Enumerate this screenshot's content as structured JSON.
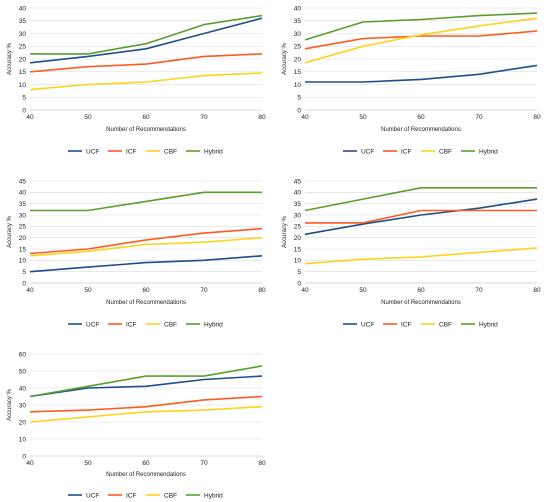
{
  "chart_data": [
    {
      "type": "line",
      "x": [
        40,
        50,
        60,
        70,
        80
      ],
      "xlabel": "Number of Recommendations",
      "ylabel": "Accuracy %",
      "ylim": [
        0,
        40
      ],
      "yticks": [
        0,
        5,
        10,
        15,
        20,
        25,
        30,
        35,
        40
      ],
      "grid": "horizontal",
      "legend_position": "bottom",
      "series": [
        {
          "name": "UCF",
          "color": "#1f4e8c",
          "values": [
            18.5,
            21,
            24,
            30,
            36
          ]
        },
        {
          "name": "ICF",
          "color": "#ff5a1f",
          "values": [
            15,
            17,
            18,
            21,
            22
          ]
        },
        {
          "name": "CBF",
          "color": "#ffd21f",
          "values": [
            8,
            10,
            11,
            13.5,
            14.5
          ]
        },
        {
          "name": "Hybrid",
          "color": "#5a9e2f",
          "values": [
            22,
            22,
            26,
            33.5,
            37
          ]
        }
      ]
    },
    {
      "type": "line",
      "x": [
        40,
        50,
        60,
        70,
        80
      ],
      "xlabel": "Number of Recommendations",
      "ylabel": "Accuracy %",
      "ylim": [
        0,
        40
      ],
      "yticks": [
        0,
        5,
        10,
        15,
        20,
        25,
        30,
        35,
        40
      ],
      "grid": "horizontal",
      "legend_position": "bottom",
      "series": [
        {
          "name": "UCF",
          "color": "#1f4e8c",
          "values": [
            11,
            11,
            12,
            14,
            17.5
          ]
        },
        {
          "name": "ICF",
          "color": "#ff5a1f",
          "values": [
            24,
            28,
            29,
            29,
            31
          ]
        },
        {
          "name": "CBF",
          "color": "#ffd21f",
          "values": [
            18.5,
            25,
            29.5,
            33,
            36
          ]
        },
        {
          "name": "Hybrid",
          "color": "#5a9e2f",
          "values": [
            27.5,
            34.5,
            35.5,
            37,
            38
          ]
        }
      ]
    },
    {
      "type": "line",
      "x": [
        40,
        50,
        60,
        70,
        80
      ],
      "xlabel": "Number of Recommendations",
      "ylabel": "Accuracy %",
      "ylim": [
        0,
        45
      ],
      "yticks": [
        0,
        5,
        10,
        15,
        20,
        25,
        30,
        35,
        40,
        45
      ],
      "grid": "horizontal",
      "legend_position": "bottom",
      "series": [
        {
          "name": "UCF",
          "color": "#1f4e8c",
          "values": [
            5,
            7,
            9,
            10,
            12
          ]
        },
        {
          "name": "ICF",
          "color": "#ff5a1f",
          "values": [
            13,
            15,
            19,
            22,
            24
          ]
        },
        {
          "name": "CBF",
          "color": "#ffd21f",
          "values": [
            12,
            14,
            17,
            18,
            20
          ]
        },
        {
          "name": "Hybrid",
          "color": "#5a9e2f",
          "values": [
            32,
            32,
            36,
            40,
            40
          ]
        }
      ]
    },
    {
      "type": "line",
      "x": [
        40,
        50,
        60,
        70,
        80
      ],
      "xlabel": "Number of Recommendations",
      "ylabel": "Accuracy %",
      "ylim": [
        0,
        45
      ],
      "yticks": [
        0,
        5,
        10,
        15,
        20,
        25,
        30,
        35,
        40,
        45
      ],
      "grid": "horizontal",
      "legend_position": "bottom",
      "series": [
        {
          "name": "UCF",
          "color": "#1f4e8c",
          "values": [
            21.5,
            26,
            30,
            33,
            37
          ]
        },
        {
          "name": "ICF",
          "color": "#ff5a1f",
          "values": [
            26.5,
            26.5,
            32,
            32,
            32
          ]
        },
        {
          "name": "CBF",
          "color": "#ffd21f",
          "values": [
            8.5,
            10.5,
            11.5,
            13.5,
            15.5
          ]
        },
        {
          "name": "Hybrid",
          "color": "#5a9e2f",
          "values": [
            32,
            37,
            42,
            42,
            42
          ]
        }
      ]
    },
    {
      "type": "line",
      "x": [
        40,
        50,
        60,
        70,
        80
      ],
      "xlabel": "Number of Recommendations",
      "ylabel": "Accuracy %",
      "ylim": [
        0,
        60
      ],
      "yticks": [
        0,
        10,
        20,
        30,
        40,
        50,
        60
      ],
      "grid": "horizontal",
      "legend_position": "bottom",
      "series": [
        {
          "name": "UCF",
          "color": "#1f4e8c",
          "values": [
            35,
            40,
            41,
            45,
            47
          ]
        },
        {
          "name": "ICF",
          "color": "#ff5a1f",
          "values": [
            26,
            27,
            29,
            33,
            35
          ]
        },
        {
          "name": "CBF",
          "color": "#ffd21f",
          "values": [
            20,
            23,
            26,
            27,
            29
          ]
        },
        {
          "name": "Hybrid",
          "color": "#5a9e2f",
          "values": [
            35,
            41,
            47,
            47,
            53
          ]
        }
      ]
    }
  ]
}
